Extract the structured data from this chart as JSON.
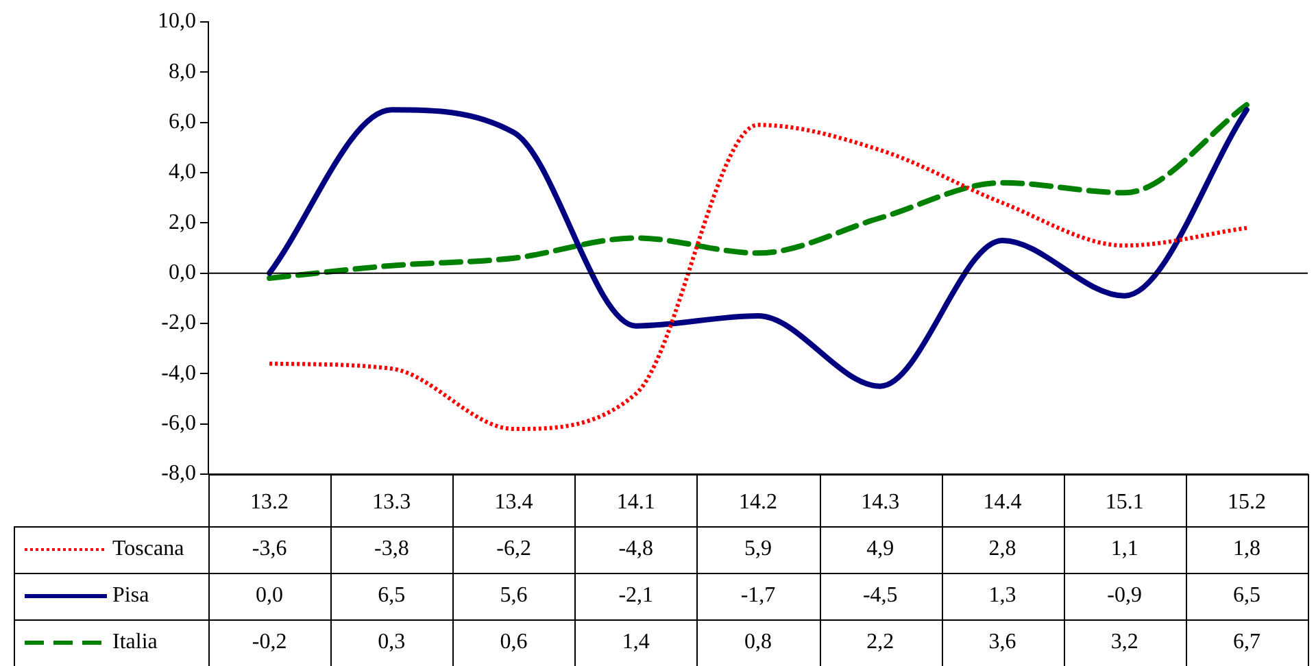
{
  "chart_data": {
    "type": "line",
    "categories": [
      "13.2",
      "13.3",
      "13.4",
      "14.1",
      "14.2",
      "14.3",
      "14.4",
      "15.1",
      "15.2"
    ],
    "series": [
      {
        "name": "Toscana",
        "color": "#ff0000",
        "line_style": "dotted",
        "values": [
          -3.6,
          -3.8,
          -6.2,
          -4.8,
          5.9,
          4.9,
          2.8,
          1.1,
          1.8
        ],
        "value_labels": [
          "-3,6",
          "-3,8",
          "-6,2",
          "-4,8",
          "5,9",
          "4,9",
          "2,8",
          "1,1",
          "1,8"
        ]
      },
      {
        "name": "Pisa",
        "color": "#000080",
        "line_style": "solid",
        "values": [
          0.0,
          6.5,
          5.6,
          -2.1,
          -1.7,
          -4.5,
          1.3,
          -0.9,
          6.5
        ],
        "value_labels": [
          "0,0",
          "6,5",
          "5,6",
          "-2,1",
          "-1,7",
          "-4,5",
          "1,3",
          "-0,9",
          "6,5"
        ]
      },
      {
        "name": "Italia",
        "color": "#008000",
        "line_style": "dashed",
        "values": [
          -0.2,
          0.3,
          0.6,
          1.4,
          0.8,
          2.2,
          3.6,
          3.2,
          6.7
        ],
        "value_labels": [
          "-0,2",
          "0,3",
          "0,6",
          "1,4",
          "0,8",
          "2,2",
          "3,6",
          "3,2",
          "6,7"
        ]
      }
    ],
    "ylim": [
      -8,
      10
    ],
    "yticks": [
      {
        "value": -8,
        "label": "-8,0"
      },
      {
        "value": -6,
        "label": "-6,0"
      },
      {
        "value": -4,
        "label": "-4,0"
      },
      {
        "value": -2,
        "label": "-2,0"
      },
      {
        "value": 0,
        "label": "0,0"
      },
      {
        "value": 2,
        "label": "2,0"
      },
      {
        "value": 4,
        "label": "4,0"
      },
      {
        "value": 6,
        "label": "6,0"
      },
      {
        "value": 8,
        "label": "8,0"
      },
      {
        "value": 10,
        "label": "10,0"
      }
    ],
    "ref_lines": [
      {
        "axis": "y",
        "value": 0,
        "color": "#000000"
      }
    ],
    "grid": false,
    "legend": "bottom",
    "marker": "none"
  }
}
